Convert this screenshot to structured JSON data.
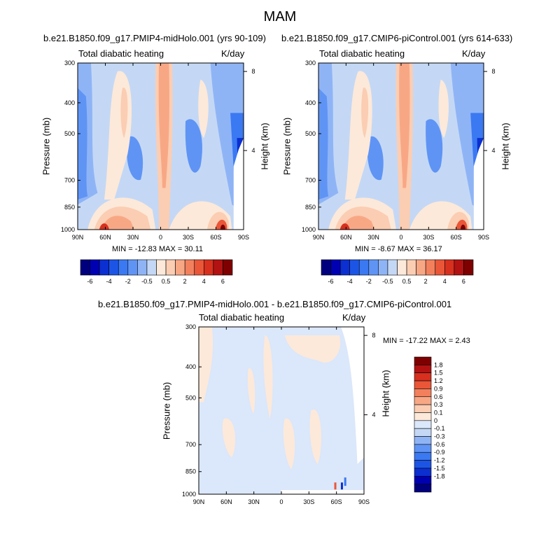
{
  "figure": {
    "title": "MAM"
  },
  "colors": {
    "abs_levels": [
      "#00007f",
      "#0000b3",
      "#0b2fd1",
      "#1c55e6",
      "#3b79f2",
      "#5f94f5",
      "#8fb4f6",
      "#c4d8f5",
      "#fde9d9",
      "#fbcdb2",
      "#f8a785",
      "#f3805d",
      "#ea5638",
      "#d7301f",
      "#b21212",
      "#7f0000"
    ],
    "diff_levels": [
      "#00007f",
      "#0000b3",
      "#0b2fd1",
      "#1c55e6",
      "#3b79f2",
      "#5f94f5",
      "#8fb4f6",
      "#c4d8f5",
      "#dbe7fa",
      "#fde9d9",
      "#fbcdb2",
      "#f8a785",
      "#f3805d",
      "#ea5638",
      "#d7301f",
      "#b21212",
      "#7f0000"
    ]
  },
  "chart_data": [
    {
      "type": "heatmap",
      "title": "b.e21.B1850.f09_g17.PMIP4-midHolo.001 (yrs 90-109)",
      "left_label": "Total diabatic heating",
      "right_label": "K/day",
      "xlabel": "",
      "ylabel": "Pressure (mb)",
      "ylabel_right": "Height (km)",
      "x_ticks": [
        "90N",
        "60N",
        "30N",
        "0",
        "30S",
        "60S",
        "90S"
      ],
      "x_range": [
        90,
        -90
      ],
      "y_ticks": [
        "300",
        "400",
        "500",
        "700",
        "850",
        "1000"
      ],
      "y_tick_values": [
        300,
        400,
        500,
        700,
        850,
        1000
      ],
      "y_range": [
        300,
        1000
      ],
      "height_ticks": [
        "8",
        "4"
      ],
      "height_tick_values": [
        8,
        4
      ],
      "stats": "MIN = -12.83  MAX =  30.11",
      "min": -12.83,
      "max": 30.11,
      "colorbar_labels": [
        "-6",
        "-4",
        "-2",
        "-0.5",
        "0.5",
        "2",
        "4",
        "6"
      ]
    },
    {
      "type": "heatmap",
      "title": "b.e21.B1850.f09_g17.CMIP6-piControl.001 (yrs 614-633)",
      "left_label": "Total diabatic heating",
      "right_label": "K/day",
      "xlabel": "",
      "ylabel": "Pressure (mb)",
      "ylabel_right": "Height (km)",
      "x_ticks": [
        "90N",
        "60N",
        "30N",
        "0",
        "30S",
        "60S",
        "90S"
      ],
      "x_range": [
        90,
        -90
      ],
      "y_ticks": [
        "300",
        "400",
        "500",
        "700",
        "850",
        "1000"
      ],
      "y_tick_values": [
        300,
        400,
        500,
        700,
        850,
        1000
      ],
      "y_range": [
        300,
        1000
      ],
      "height_ticks": [
        "8",
        "4"
      ],
      "height_tick_values": [
        8,
        4
      ],
      "stats": "MIN =  -8.67  MAX =  36.17",
      "min": -8.67,
      "max": 36.17,
      "colorbar_labels": [
        "-6",
        "-4",
        "-2",
        "-0.5",
        "0.5",
        "2",
        "4",
        "6"
      ]
    },
    {
      "type": "heatmap",
      "title": "b.e21.B1850.f09_g17.PMIP4-midHolo.001 - b.e21.B1850.f09_g17.CMIP6-piControl.001",
      "left_label": "Total diabatic heating",
      "right_label": "K/day",
      "xlabel": "",
      "ylabel": "Pressure (mb)",
      "ylabel_right": "Height (km)",
      "x_ticks": [
        "90N",
        "60N",
        "30N",
        "0",
        "30S",
        "60S",
        "90S"
      ],
      "x_range": [
        90,
        -90
      ],
      "y_ticks": [
        "300",
        "400",
        "500",
        "700",
        "850",
        "1000"
      ],
      "y_tick_values": [
        300,
        400,
        500,
        700,
        850,
        1000
      ],
      "y_range": [
        300,
        1000
      ],
      "height_ticks": [
        "8",
        "4"
      ],
      "height_tick_values": [
        8,
        4
      ],
      "stats": "MIN = -17.22  MAX =   2.43",
      "min": -17.22,
      "max": 2.43,
      "colorbar_labels": [
        "1.8",
        "1.5",
        "1.2",
        "0.9",
        "0.6",
        "0.3",
        "0.1",
        "0",
        "-0.1",
        "-0.3",
        "-0.6",
        "-0.9",
        "-1.2",
        "-1.5",
        "-1.8"
      ]
    }
  ]
}
